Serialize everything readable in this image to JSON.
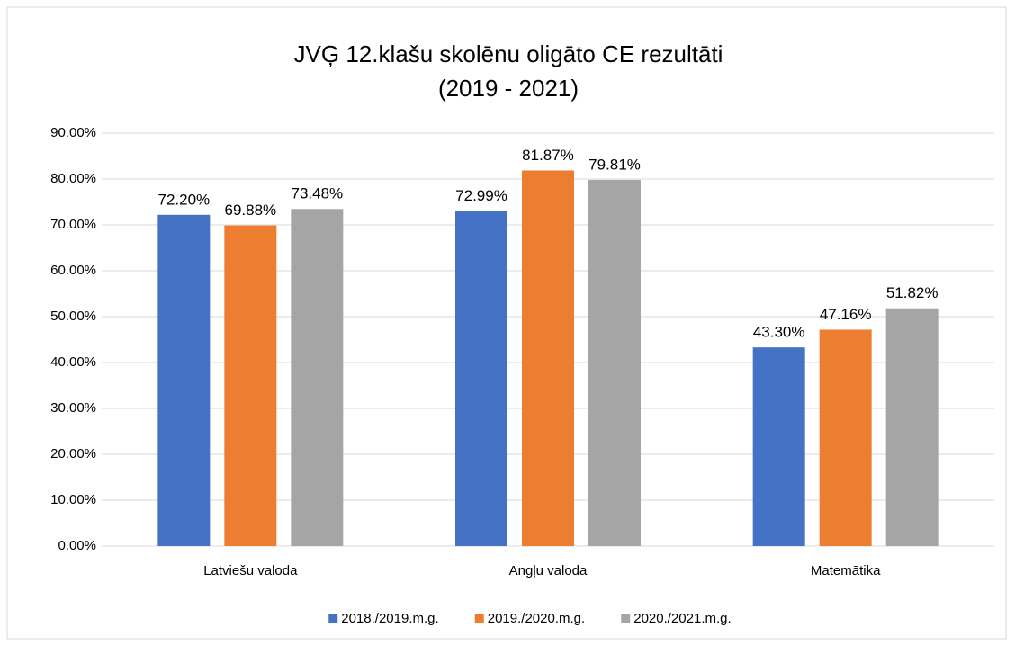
{
  "chart_data": {
    "type": "bar",
    "title": [
      "JVĢ 12.klašu skolēnu oligāto CE rezultāti",
      "(2019 - 2021)"
    ],
    "categories": [
      "Latviešu valoda",
      "Angļu valoda",
      "Matemātika"
    ],
    "series": [
      {
        "name": "2018./2019.m.g.",
        "color": "#4472c4",
        "values": [
          72.2,
          72.99,
          43.3
        ],
        "value_labels": [
          "72.20%",
          "72.99%",
          "43.30%"
        ]
      },
      {
        "name": "2019./2020.m.g.",
        "color": "#ed7d31",
        "values": [
          69.88,
          81.87,
          47.16
        ],
        "value_labels": [
          "69.88%",
          "81.87%",
          "47.16%"
        ]
      },
      {
        "name": "2020./2021.m.g.",
        "color": "#a5a5a5",
        "values": [
          73.48,
          79.81,
          51.82
        ],
        "value_labels": [
          "73.48%",
          "79.81%",
          "51.82%"
        ]
      }
    ],
    "ylim": [
      0,
      90
    ],
    "yticks": [
      {
        "value": 0,
        "label": "0.00%"
      },
      {
        "value": 10,
        "label": "10.00%"
      },
      {
        "value": 20,
        "label": "20.00%"
      },
      {
        "value": 30,
        "label": "30.00%"
      },
      {
        "value": 40,
        "label": "40.00%"
      },
      {
        "value": 50,
        "label": "50.00%"
      },
      {
        "value": 60,
        "label": "60.00%"
      },
      {
        "value": 70,
        "label": "70.00%"
      },
      {
        "value": 80,
        "label": "80.00%"
      },
      {
        "value": 90,
        "label": "90.00%"
      }
    ],
    "grid": true,
    "legend": "bottom"
  }
}
